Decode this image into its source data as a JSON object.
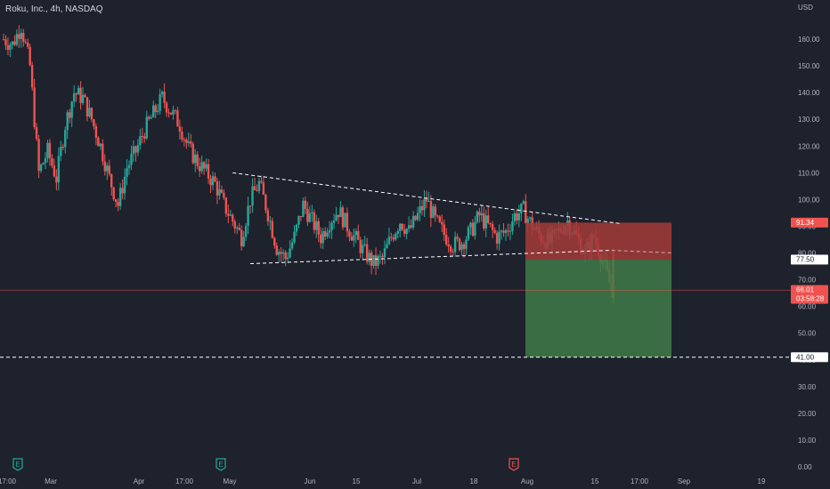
{
  "header": {
    "symbol_title": "Roku, Inc., 4h, NASDAQ",
    "currency": "USD"
  },
  "colors": {
    "background": "#1e222d",
    "up": "#26a69a",
    "down": "#ef5350",
    "stop_zone": "#a33a3a",
    "target_zone": "#3f7a48",
    "axis_text": "#b2b5be"
  },
  "chart_data": {
    "type": "candlestick",
    "title": "Roku, Inc., 4h, NASDAQ",
    "ylim": [
      0,
      168
    ],
    "y_ticks": [
      0,
      10,
      20,
      30,
      40,
      50,
      60,
      70,
      80,
      90,
      100,
      110,
      120,
      130,
      140,
      150,
      160
    ],
    "y_tick_labels": [
      "0.00",
      "10.00",
      "20.00",
      "30.00",
      "40.00",
      "50.00",
      "60.00",
      "70.00",
      "80.00",
      "90.00",
      "100.00",
      "110.00",
      "120.00",
      "130.00",
      "140.00",
      "150.00",
      "160.00"
    ],
    "x_tick_labels": [
      "17:00",
      "Mar",
      "Apr",
      "17:00",
      "May",
      "Jun",
      "15",
      "Jul",
      "18",
      "Aug",
      "15",
      "17:00",
      "Sep",
      "19"
    ],
    "close_path": [
      [
        0,
        160
      ],
      [
        2,
        158
      ],
      [
        4,
        165
      ],
      [
        6,
        150
      ],
      [
        8,
        110
      ],
      [
        10,
        118
      ],
      [
        12,
        108
      ],
      [
        14,
        128
      ],
      [
        16,
        140
      ],
      [
        18,
        138
      ],
      [
        20,
        130
      ],
      [
        22,
        120
      ],
      [
        24,
        108
      ],
      [
        26,
        98
      ],
      [
        28,
        112
      ],
      [
        30,
        118
      ],
      [
        32,
        126
      ],
      [
        34,
        132
      ],
      [
        36,
        138
      ],
      [
        38,
        133
      ],
      [
        40,
        128
      ],
      [
        42,
        119
      ],
      [
        44,
        114
      ],
      [
        46,
        110
      ],
      [
        48,
        106
      ],
      [
        50,
        98
      ],
      [
        52,
        92
      ],
      [
        54,
        86
      ],
      [
        56,
        100
      ],
      [
        58,
        106
      ],
      [
        60,
        95
      ],
      [
        62,
        82
      ],
      [
        64,
        78
      ],
      [
        66,
        86
      ],
      [
        68,
        98
      ],
      [
        70,
        92
      ],
      [
        72,
        86
      ],
      [
        74,
        92
      ],
      [
        76,
        96
      ],
      [
        78,
        90
      ],
      [
        80,
        85
      ],
      [
        82,
        80
      ],
      [
        84,
        76
      ],
      [
        86,
        78
      ],
      [
        88,
        86
      ],
      [
        90,
        92
      ],
      [
        92,
        88
      ],
      [
        94,
        94
      ],
      [
        96,
        100
      ],
      [
        98,
        92
      ],
      [
        100,
        87
      ],
      [
        102,
        83
      ],
      [
        104,
        84
      ],
      [
        106,
        88
      ],
      [
        108,
        94
      ],
      [
        110,
        90
      ],
      [
        112,
        86
      ],
      [
        114,
        88
      ],
      [
        116,
        94
      ],
      [
        118,
        96
      ],
      [
        120,
        90
      ],
      [
        122,
        86
      ],
      [
        124,
        84
      ],
      [
        126,
        88
      ],
      [
        128,
        92
      ],
      [
        130,
        86
      ],
      [
        132,
        80
      ],
      [
        134,
        86
      ],
      [
        136,
        77
      ],
      [
        138,
        66
      ]
    ],
    "annotations": {
      "descending_triangle": {
        "upper": [
          [
            52,
            110
          ],
          [
            140,
            91
          ]
        ],
        "lower": [
          [
            56,
            76
          ],
          [
            138,
            81
          ]
        ],
        "projection": [
          [
            138,
            81
          ],
          [
            152,
            80
          ]
        ]
      },
      "trade_box": {
        "entry": 77.5,
        "stop": 91.34,
        "target": 41.0
      },
      "horizontal_line": 41.0,
      "current_price_line": 66.01
    },
    "price_tags": [
      {
        "label": "91.34",
        "value": 91.34,
        "style": "stop"
      },
      {
        "label": "77.50",
        "value": 77.5,
        "style": "entry"
      },
      {
        "label": "66.01",
        "value": 66.01,
        "style": "last",
        "countdown": "03:58:28"
      },
      {
        "label": "41.00",
        "value": 41.0,
        "style": "line"
      }
    ],
    "event_markers": [
      {
        "label": "E",
        "kind": "earnings-past"
      },
      {
        "label": "E",
        "kind": "earnings-past"
      },
      {
        "label": "E",
        "kind": "earnings-upcoming"
      }
    ]
  }
}
